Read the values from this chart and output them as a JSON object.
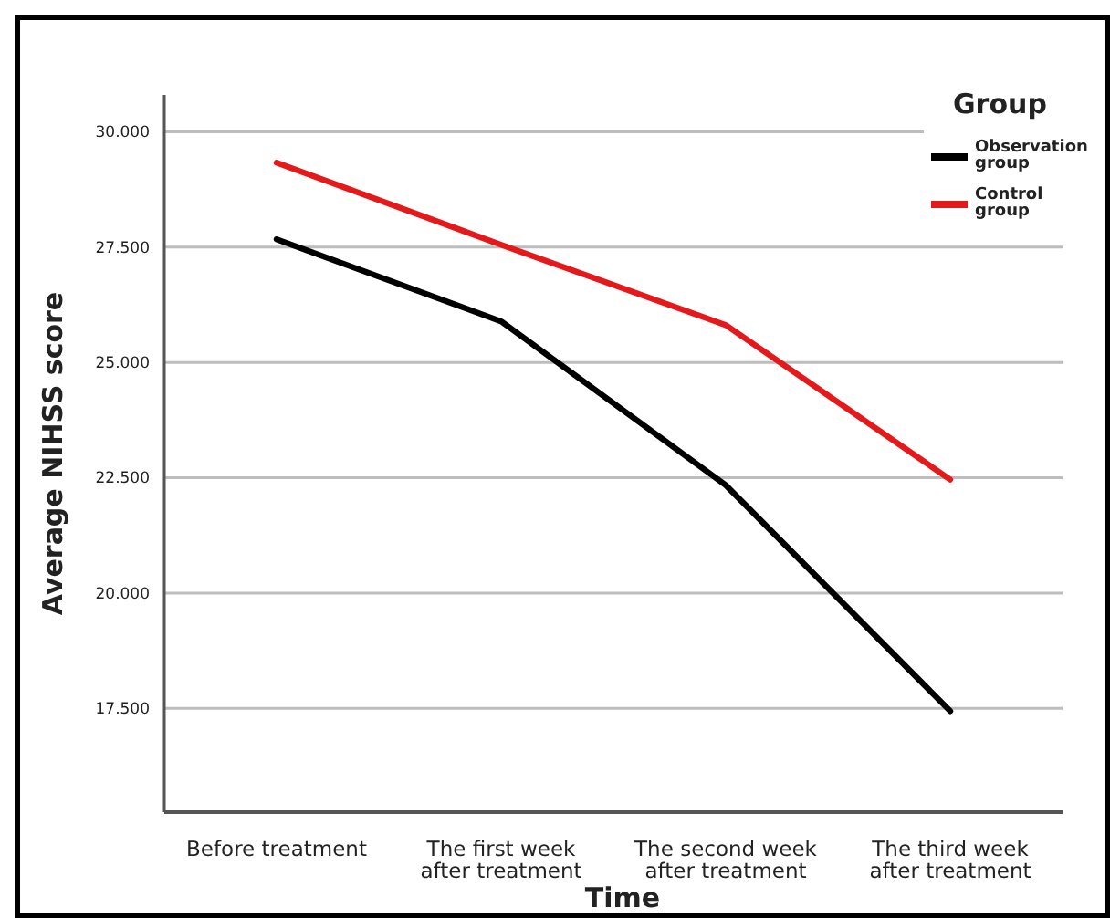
{
  "chart_data": {
    "type": "line",
    "xlabel": "Time",
    "ylabel": "Average NIHSS score",
    "legend_title": "Group",
    "legend": "top right",
    "grid": "y",
    "marker": "none",
    "line_style": "solid",
    "categories": [
      "Before treatment",
      "The first week after treatment",
      "The second week after treatment",
      "The third week after treatment"
    ],
    "ylim": [
      15.25,
      30.8
    ],
    "yticks": [
      {
        "value": 17.5,
        "label": "17.500"
      },
      {
        "value": 20,
        "label": "20.000"
      },
      {
        "value": 22.5,
        "label": "22.500"
      },
      {
        "value": 25,
        "label": "25.000"
      },
      {
        "value": 27.5,
        "label": "27.500"
      },
      {
        "value": 30,
        "label": "30.000"
      }
    ],
    "series": [
      {
        "name": "Observation group",
        "color": "#000000",
        "values": [
          27.67,
          25.89,
          22.34,
          17.44
        ]
      },
      {
        "name": "Control group",
        "color": "#e3191c",
        "values": [
          29.33,
          27.55,
          25.81,
          22.46
        ]
      }
    ]
  }
}
